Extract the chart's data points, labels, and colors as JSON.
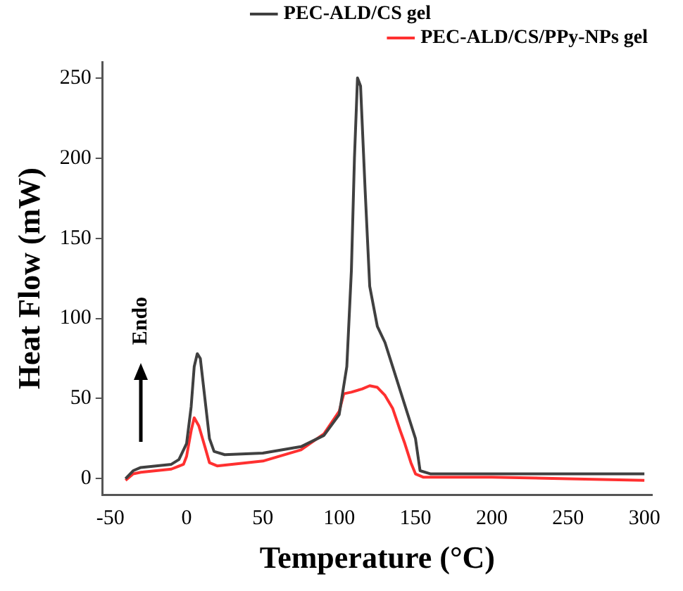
{
  "chart_data": {
    "type": "line",
    "xlabel": "Temperature (°C)",
    "ylabel": "Heat Flow (mW)",
    "annotations": [
      "Endo"
    ],
    "xlim": [
      -55,
      305
    ],
    "xticks": [
      -50,
      0,
      50,
      100,
      150,
      200,
      250,
      300
    ],
    "ylim": [
      -10,
      260
    ],
    "yticks": [
      0,
      50,
      100,
      150,
      200,
      250
    ],
    "grid": false,
    "legend": "top right",
    "marker": "none",
    "line_style": "solid",
    "series": [
      {
        "name": "PEC-ALD/CS gel",
        "color": "#404040",
        "x": [
          -40,
          -35,
          -30,
          -20,
          -10,
          -5,
          0,
          3,
          5,
          7,
          9,
          12,
          15,
          18,
          25,
          50,
          75,
          90,
          100,
          105,
          108,
          110,
          112,
          114,
          117,
          120,
          125,
          130,
          135,
          140,
          145,
          150,
          153,
          160,
          200,
          300
        ],
        "values": [
          0,
          5,
          7,
          8,
          9,
          12,
          22,
          45,
          70,
          78,
          75,
          50,
          25,
          17,
          15,
          16,
          20,
          27,
          40,
          70,
          130,
          200,
          250,
          245,
          180,
          120,
          95,
          85,
          70,
          55,
          40,
          25,
          5,
          3,
          3,
          3
        ]
      },
      {
        "name": "PEC-ALD/CS/PPy-NPs gel",
        "color": "#ff3030",
        "x": [
          -40,
          -35,
          -30,
          -10,
          -2,
          0,
          3,
          5,
          8,
          12,
          15,
          20,
          50,
          75,
          90,
          100,
          103,
          108,
          115,
          120,
          125,
          130,
          135,
          140,
          143,
          147,
          150,
          155,
          200,
          250,
          300
        ],
        "values": [
          -1,
          3,
          4,
          6,
          9,
          14,
          30,
          38,
          33,
          20,
          10,
          8,
          11,
          18,
          28,
          42,
          53,
          54,
          56,
          58,
          57,
          52,
          44,
          30,
          22,
          10,
          3,
          1,
          1,
          0,
          -1
        ]
      }
    ]
  }
}
